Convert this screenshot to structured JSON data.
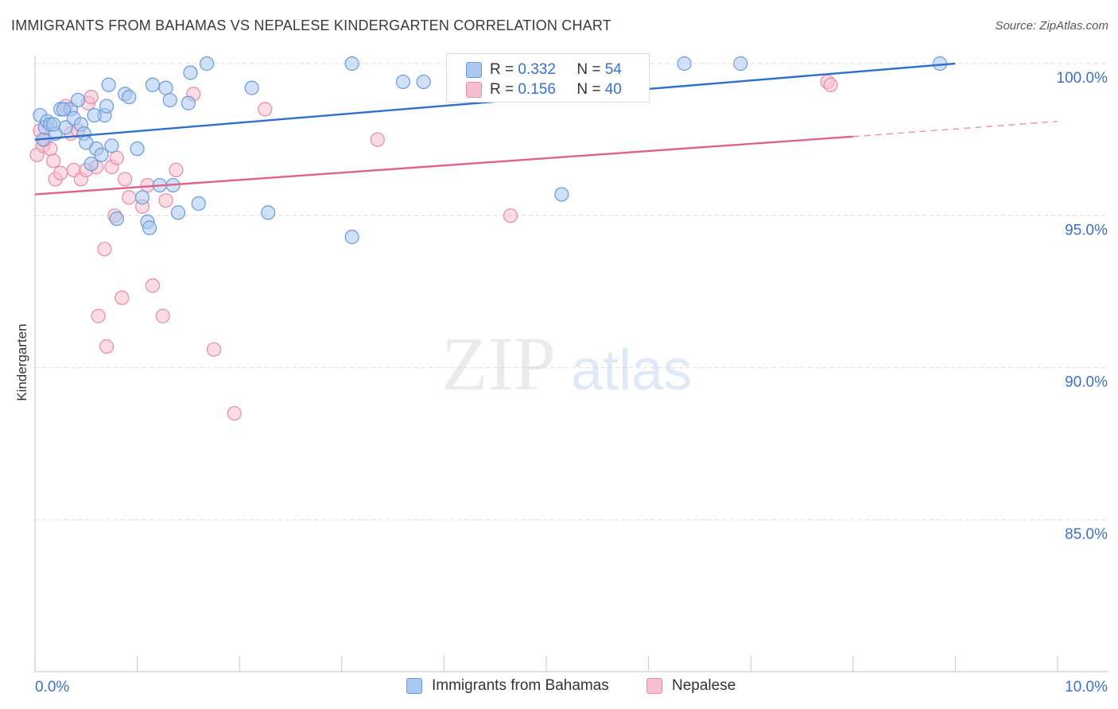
{
  "title": "IMMIGRANTS FROM BAHAMAS VS NEPALESE KINDERGARTEN CORRELATION CHART",
  "source": "Source: ZipAtlas.com",
  "watermark": {
    "zip": "ZIP",
    "atlas": "atlas"
  },
  "colors": {
    "blue_fill": "#aac8f0",
    "blue_stroke": "#6a9ad8",
    "blue_line": "#2f6fcc",
    "pink_fill": "#f6bfd0",
    "pink_stroke": "#e88aa8",
    "pink_line": "#e0628c",
    "tick_text": "#3a6fcf",
    "grid": "#dddddd"
  },
  "stats": {
    "blue": {
      "r_label": "R =",
      "r_value": "0.332",
      "n_label": "N =",
      "n_value": "54"
    },
    "pink": {
      "r_label": "R =",
      "r_value": "0.156",
      "n_label": "N =",
      "n_value": "40"
    }
  },
  "chart_data": {
    "type": "scatter",
    "title": "IMMIGRANTS FROM BAHAMAS VS NEPALESE KINDERGARTEN CORRELATION CHART",
    "xlabel": "",
    "ylabel": "Kindergarten",
    "xlim": [
      0,
      10
    ],
    "ylim": [
      80.5,
      100.8
    ],
    "x_tick_labels": [
      "0.0%",
      "10.0%"
    ],
    "y_ticks": [
      100,
      95,
      90,
      85
    ],
    "y_tick_labels": [
      "100.0%",
      "95.0%",
      "90.0%",
      "85.0%"
    ],
    "grid": true,
    "legend_position": "bottom",
    "series": [
      {
        "name": "Immigrants from Bahamas",
        "color": "#aac8f0",
        "trend": {
          "x": [
            0,
            9.0
          ],
          "y": [
            97.5,
            100.0
          ],
          "dashed_to": null
        },
        "points": [
          [
            0.05,
            98.3
          ],
          [
            0.08,
            97.5
          ],
          [
            0.1,
            97.9
          ],
          [
            0.12,
            98.1
          ],
          [
            0.15,
            98.0
          ],
          [
            0.2,
            97.7
          ],
          [
            0.25,
            98.5
          ],
          [
            0.3,
            97.9
          ],
          [
            0.35,
            98.5
          ],
          [
            0.38,
            98.2
          ],
          [
            0.42,
            98.8
          ],
          [
            0.45,
            98.0
          ],
          [
            0.48,
            97.7
          ],
          [
            0.5,
            97.4
          ],
          [
            0.55,
            96.7
          ],
          [
            0.6,
            97.2
          ],
          [
            0.65,
            97.0
          ],
          [
            0.68,
            98.3
          ],
          [
            0.7,
            98.6
          ],
          [
            0.72,
            99.3
          ],
          [
            0.75,
            97.3
          ],
          [
            0.8,
            94.9
          ],
          [
            0.88,
            99.0
          ],
          [
            0.92,
            98.9
          ],
          [
            1.0,
            97.2
          ],
          [
            1.05,
            95.6
          ],
          [
            1.1,
            94.8
          ],
          [
            1.12,
            94.6
          ],
          [
            1.15,
            99.3
          ],
          [
            1.22,
            96.0
          ],
          [
            1.28,
            99.2
          ],
          [
            1.32,
            98.8
          ],
          [
            1.35,
            96.0
          ],
          [
            1.4,
            95.1
          ],
          [
            1.5,
            98.7
          ],
          [
            1.52,
            99.7
          ],
          [
            1.6,
            95.4
          ],
          [
            1.68,
            100.0
          ],
          [
            2.12,
            99.2
          ],
          [
            2.28,
            95.1
          ],
          [
            3.1,
            100.0
          ],
          [
            3.1,
            94.3
          ],
          [
            3.6,
            99.4
          ],
          [
            3.8,
            99.4
          ],
          [
            4.4,
            100.0
          ],
          [
            4.55,
            100.0
          ],
          [
            5.15,
            95.7
          ],
          [
            5.9,
            100.0
          ],
          [
            6.35,
            100.0
          ],
          [
            6.9,
            100.0
          ],
          [
            8.85,
            100.0
          ],
          [
            0.18,
            98.0
          ],
          [
            0.28,
            98.5
          ],
          [
            0.58,
            98.3
          ]
        ]
      },
      {
        "name": "Nepalese",
        "color": "#f6bfd0",
        "trend": {
          "x": [
            0,
            8.0
          ],
          "y": [
            95.7,
            97.6
          ],
          "dashed_to": [
            10.0,
            98.1
          ]
        },
        "points": [
          [
            0.02,
            97.0
          ],
          [
            0.05,
            97.8
          ],
          [
            0.08,
            97.3
          ],
          [
            0.1,
            97.5
          ],
          [
            0.15,
            97.2
          ],
          [
            0.18,
            96.8
          ],
          [
            0.2,
            96.2
          ],
          [
            0.25,
            96.4
          ],
          [
            0.3,
            98.6
          ],
          [
            0.35,
            97.7
          ],
          [
            0.38,
            96.5
          ],
          [
            0.42,
            97.8
          ],
          [
            0.45,
            96.2
          ],
          [
            0.5,
            96.5
          ],
          [
            0.52,
            98.7
          ],
          [
            0.55,
            98.9
          ],
          [
            0.6,
            96.6
          ],
          [
            0.62,
            91.7
          ],
          [
            0.68,
            93.9
          ],
          [
            0.7,
            90.7
          ],
          [
            0.75,
            96.6
          ],
          [
            0.78,
            95.0
          ],
          [
            0.8,
            96.9
          ],
          [
            0.85,
            92.3
          ],
          [
            0.88,
            96.2
          ],
          [
            0.92,
            95.6
          ],
          [
            1.05,
            95.3
          ],
          [
            1.1,
            96.0
          ],
          [
            1.15,
            92.7
          ],
          [
            1.25,
            91.7
          ],
          [
            1.28,
            95.5
          ],
          [
            1.38,
            96.5
          ],
          [
            1.55,
            99.0
          ],
          [
            1.75,
            90.6
          ],
          [
            1.95,
            88.5
          ],
          [
            2.25,
            98.5
          ],
          [
            3.35,
            97.5
          ],
          [
            4.65,
            95.0
          ],
          [
            7.75,
            99.4
          ],
          [
            7.78,
            99.3
          ]
        ]
      }
    ]
  }
}
